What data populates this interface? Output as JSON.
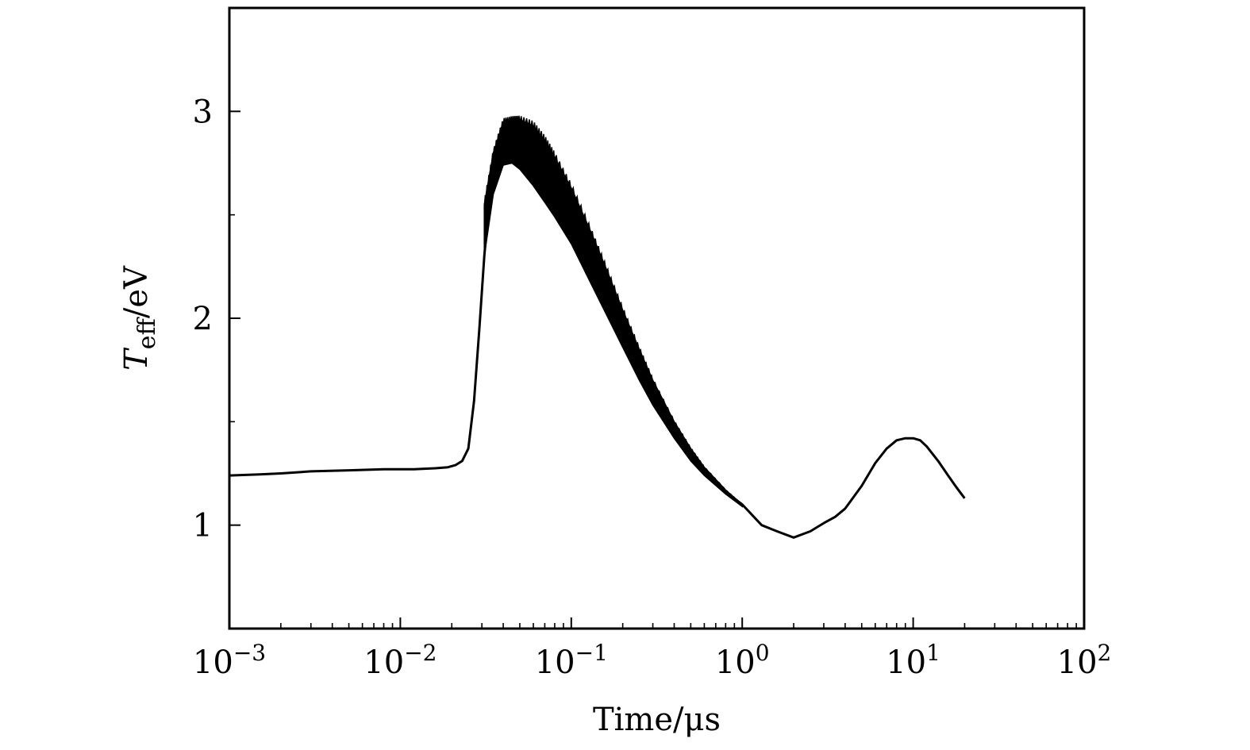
{
  "chart_data": {
    "type": "line",
    "xlabel": "Time/μs",
    "ylabel_main": "T",
    "ylabel_sub": "eff",
    "ylabel_unit": "/eV",
    "x_scale": "log",
    "xlim": [
      0.001,
      100
    ],
    "ylim": [
      0.5,
      3.5
    ],
    "x_ticks": [
      {
        "value": 0.001,
        "base": "10",
        "exp": "−3"
      },
      {
        "value": 0.01,
        "base": "10",
        "exp": "−2"
      },
      {
        "value": 0.1,
        "base": "10",
        "exp": "−1"
      },
      {
        "value": 1,
        "base": "10",
        "exp": "0"
      },
      {
        "value": 10,
        "base": "10",
        "exp": "1"
      },
      {
        "value": 100,
        "base": "10",
        "exp": "2"
      }
    ],
    "y_ticks": [
      {
        "value": 1,
        "label": "1"
      },
      {
        "value": 2,
        "label": "2"
      },
      {
        "value": 3,
        "label": "3"
      }
    ],
    "y_minor_ticks": [
      1.5,
      2.5
    ],
    "grid": false,
    "line_color": "#000000",
    "series": [
      {
        "x": [
          0.001,
          0.0015,
          0.002,
          0.003,
          0.005,
          0.008,
          0.012,
          0.016,
          0.019,
          0.021,
          0.023,
          0.025,
          0.027,
          0.029,
          0.031,
          0.033,
          0.035,
          0.04,
          0.045,
          0.05,
          0.06,
          0.07,
          0.08,
          0.1,
          0.13,
          0.16,
          0.2,
          0.25,
          0.3,
          0.4,
          0.5,
          0.6,
          0.8,
          1.0,
          1.3,
          1.6,
          2.0,
          2.5,
          3.0,
          3.5,
          4.0,
          5.0,
          6.0,
          7.0,
          8.0,
          9.0,
          10.0,
          11.0,
          12.0,
          14.0,
          16.0,
          18.0,
          20.0
        ],
        "y": [
          1.24,
          1.245,
          1.25,
          1.26,
          1.265,
          1.27,
          1.27,
          1.275,
          1.28,
          1.29,
          1.31,
          1.37,
          1.6,
          1.95,
          2.3,
          2.55,
          2.72,
          2.86,
          2.88,
          2.86,
          2.8,
          2.72,
          2.64,
          2.5,
          2.3,
          2.14,
          1.96,
          1.78,
          1.64,
          1.46,
          1.34,
          1.26,
          1.16,
          1.1,
          1.0,
          0.97,
          0.94,
          0.97,
          1.01,
          1.04,
          1.08,
          1.19,
          1.3,
          1.37,
          1.41,
          1.42,
          1.42,
          1.41,
          1.38,
          1.31,
          1.24,
          1.18,
          1.13
        ]
      }
    ],
    "band": {
      "x": [
        0.031,
        0.035,
        0.04,
        0.045,
        0.05,
        0.06,
        0.07,
        0.08,
        0.1,
        0.13,
        0.16,
        0.2,
        0.25,
        0.3,
        0.4,
        0.5,
        0.6,
        0.8,
        1.0
      ],
      "y_upper": [
        2.55,
        2.8,
        2.95,
        2.96,
        2.96,
        2.93,
        2.86,
        2.78,
        2.63,
        2.42,
        2.24,
        2.04,
        1.85,
        1.7,
        1.5,
        1.37,
        1.28,
        1.17,
        1.1
      ],
      "y_lower": [
        2.3,
        2.6,
        2.74,
        2.75,
        2.72,
        2.64,
        2.56,
        2.49,
        2.36,
        2.17,
        2.02,
        1.86,
        1.7,
        1.58,
        1.42,
        1.31,
        1.24,
        1.15,
        1.09
      ]
    }
  }
}
